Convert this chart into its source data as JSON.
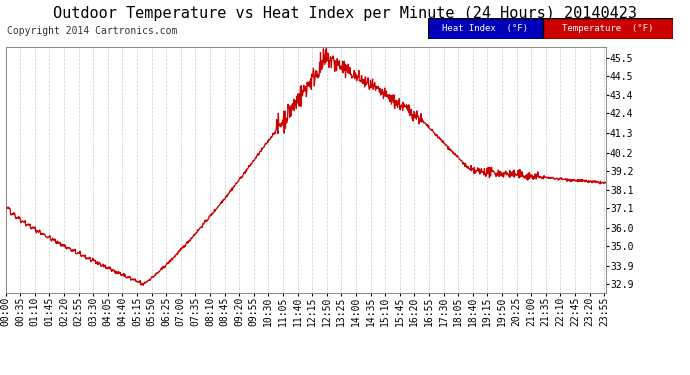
{
  "title": "Outdoor Temperature vs Heat Index per Minute (24 Hours) 20140423",
  "copyright": "Copyright 2014 Cartronics.com",
  "ylabel_right_ticks": [
    32.9,
    33.9,
    35.0,
    36.0,
    37.1,
    38.1,
    39.2,
    40.2,
    41.3,
    42.4,
    43.4,
    44.5,
    45.5
  ],
  "xlim": [
    0,
    1439
  ],
  "ylim": [
    32.4,
    46.1
  ],
  "line_color": "#cc0000",
  "background_color": "#ffffff",
  "legend_heat_index_bg": "#0000bb",
  "legend_temp_bg": "#cc0000",
  "grid_color": "#cccccc",
  "title_fontsize": 11,
  "copyright_fontsize": 7,
  "tick_fontsize": 7,
  "x_tick_interval": 35,
  "x_tick_labels": [
    "00:00",
    "00:35",
    "01:10",
    "01:45",
    "02:20",
    "02:55",
    "03:30",
    "04:05",
    "04:40",
    "05:15",
    "05:50",
    "06:25",
    "07:00",
    "07:35",
    "08:10",
    "08:45",
    "09:20",
    "09:55",
    "10:30",
    "11:05",
    "11:40",
    "12:15",
    "12:50",
    "13:25",
    "14:00",
    "14:35",
    "15:10",
    "15:45",
    "16:20",
    "16:55",
    "17:30",
    "18:05",
    "18:40",
    "19:15",
    "19:50",
    "20:25",
    "21:00",
    "21:35",
    "22:10",
    "22:45",
    "23:20",
    "23:55"
  ]
}
